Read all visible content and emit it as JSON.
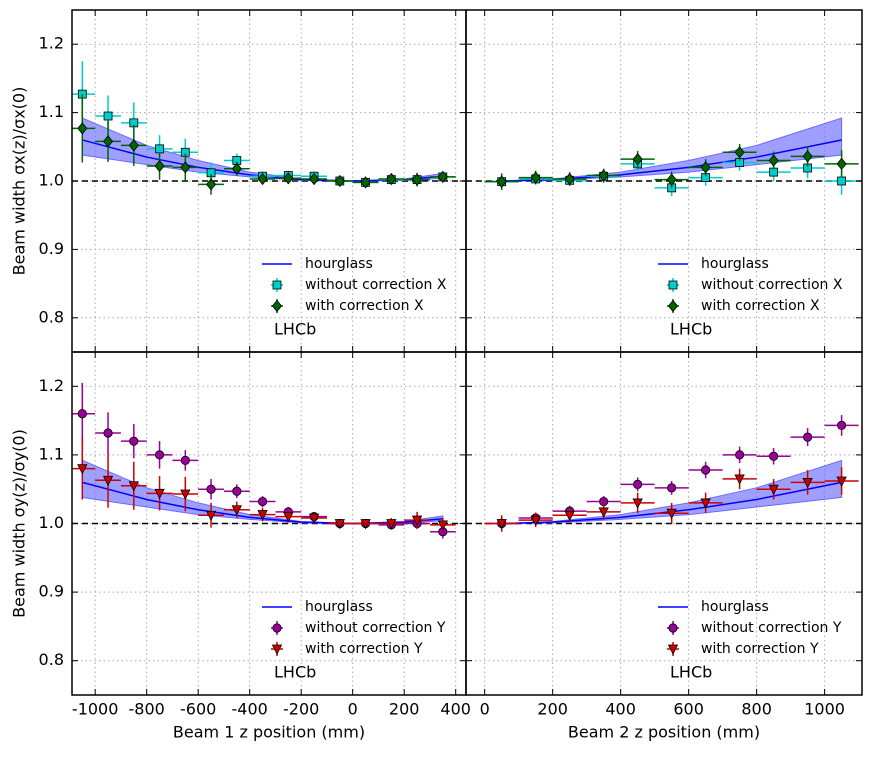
{
  "chart_data": [
    {
      "type": "scatter",
      "ylabel": "Beam width σx(z)/σx(0)",
      "annotation": "LHCb",
      "legend": "lower right",
      "grid": true,
      "hline": 1,
      "xlim": [
        -1090,
        440
      ],
      "ylim": [
        0.75,
        1.25
      ],
      "yticks": [
        0.8,
        0.9,
        {
          "value": 1,
          "label": "1.0"
        },
        1.1,
        1.2
      ],
      "series": [
        {
          "name": "hourglass",
          "color": "#0000ff",
          "band_color": "#6b6bff",
          "x": [
            -1050,
            -800,
            -600,
            -400,
            -200,
            0,
            200,
            350
          ],
          "values": [
            1.06,
            1.035,
            1.02,
            1.009,
            1.002,
            1.0,
            1.002,
            1.007
          ],
          "band_low": [
            1.038,
            1.024,
            1.013,
            1.006,
            1.001,
            1.0,
            1.001,
            1.004
          ],
          "band_high": [
            1.092,
            1.052,
            1.03,
            1.013,
            1.003,
            1.0,
            1.003,
            1.011
          ]
        },
        {
          "name": "without correction X",
          "color": "#00cccc",
          "marker": "square",
          "xerr": 50,
          "x": [
            -1050,
            -950,
            -850,
            -750,
            -650,
            -550,
            -450,
            -350,
            -250,
            -150,
            -50,
            50,
            150,
            250,
            350
          ],
          "values": [
            1.127,
            1.095,
            1.085,
            1.047,
            1.042,
            1.012,
            1.03,
            1.007,
            1.008,
            1.007,
            1.0,
            0.998,
            1.002,
            1.002,
            1.006
          ],
          "errors": [
            0.048,
            0.03,
            0.03,
            0.02,
            0.02,
            0.015,
            0.01,
            0.007,
            0.007,
            0.007,
            0.006,
            0.006,
            0.007,
            0.007,
            0.007
          ]
        },
        {
          "name": "with correction X",
          "color": "#006400",
          "marker": "diamond",
          "xerr": 50,
          "x": [
            -1050,
            -950,
            -850,
            -750,
            -650,
            -550,
            -450,
            -350,
            -250,
            -150,
            -50,
            50,
            150,
            250,
            350
          ],
          "values": [
            1.077,
            1.058,
            1.052,
            1.022,
            1.02,
            0.995,
            1.018,
            1.003,
            1.004,
            1.003,
            1.0,
            0.998,
            1.003,
            1.002,
            1.006
          ],
          "errors": [
            0.05,
            0.03,
            0.03,
            0.02,
            0.02,
            0.015,
            0.01,
            0.008,
            0.008,
            0.008,
            0.006,
            0.006,
            0.008,
            0.01,
            0.008
          ]
        }
      ]
    },
    {
      "type": "scatter",
      "annotation": "LHCb",
      "legend": "lower right",
      "grid": true,
      "hline": 1,
      "xlim": [
        -55,
        1110
      ],
      "ylim": [
        0.75,
        1.25
      ],
      "series": [
        {
          "name": "hourglass",
          "color": "#0000ff",
          "band_color": "#6b6bff",
          "x": [
            50,
            200,
            400,
            600,
            800,
            1050
          ],
          "values": [
            1.0,
            1.002,
            1.009,
            1.02,
            1.035,
            1.06
          ],
          "band_low": [
            1.0,
            1.001,
            1.006,
            1.013,
            1.024,
            1.038
          ],
          "band_high": [
            1.0,
            1.003,
            1.013,
            1.03,
            1.052,
            1.092
          ]
        },
        {
          "name": "without correction X",
          "color": "#00cccc",
          "marker": "square",
          "xerr": 50,
          "x": [
            50,
            150,
            250,
            350,
            450,
            550,
            650,
            750,
            850,
            950,
            1050
          ],
          "values": [
            0.999,
            1.003,
            1.001,
            1.007,
            1.025,
            0.99,
            1.005,
            1.027,
            1.013,
            1.019,
            1.0
          ],
          "errors": [
            0.01,
            0.008,
            0.008,
            0.01,
            0.01,
            0.012,
            0.012,
            0.012,
            0.013,
            0.015,
            0.02
          ]
        },
        {
          "name": "with correction X",
          "color": "#006400",
          "marker": "diamond",
          "xerr": 50,
          "x": [
            50,
            150,
            250,
            350,
            450,
            550,
            650,
            750,
            850,
            950,
            1050
          ],
          "values": [
            0.999,
            1.005,
            1.003,
            1.008,
            1.032,
            1.002,
            1.02,
            1.042,
            1.03,
            1.036,
            1.025
          ],
          "errors": [
            0.012,
            0.01,
            0.01,
            0.01,
            0.012,
            0.012,
            0.012,
            0.012,
            0.013,
            0.015,
            0.02
          ]
        }
      ]
    },
    {
      "type": "scatter",
      "ylabel": "Beam width σy(z)/σy(0)",
      "xlabel": "Beam 1 z position (mm)",
      "annotation": "LHCb",
      "legend": "lower right",
      "grid": true,
      "hline": 1,
      "xlim": [
        -1090,
        440
      ],
      "ylim": [
        0.75,
        1.25
      ],
      "yticks": [
        0.8,
        0.9,
        {
          "value": 1,
          "label": "1.0"
        },
        1.1,
        1.2
      ],
      "xticks": [
        -1000,
        -800,
        -600,
        -400,
        -200,
        0,
        200,
        400
      ],
      "series": [
        {
          "name": "hourglass",
          "color": "#0000ff",
          "band_color": "#6b6bff",
          "x": [
            -1050,
            -800,
            -600,
            -400,
            -200,
            0,
            200,
            350
          ],
          "values": [
            1.06,
            1.035,
            1.02,
            1.009,
            1.002,
            1.0,
            1.002,
            1.007
          ],
          "band_low": [
            1.038,
            1.024,
            1.013,
            1.006,
            1.001,
            1.0,
            1.001,
            1.004
          ],
          "band_high": [
            1.092,
            1.052,
            1.03,
            1.013,
            1.003,
            1.0,
            1.003,
            1.011
          ]
        },
        {
          "name": "without correction Y",
          "color": "#990099",
          "marker": "circle",
          "xerr": 50,
          "x": [
            -1050,
            -950,
            -850,
            -750,
            -650,
            -550,
            -450,
            -350,
            -250,
            -150,
            -50,
            50,
            150,
            250,
            350
          ],
          "values": [
            1.16,
            1.132,
            1.12,
            1.1,
            1.092,
            1.05,
            1.047,
            1.032,
            1.017,
            1.01,
            1.0,
            1.0,
            0.998,
            1.0,
            0.988
          ],
          "errors": [
            0.045,
            0.03,
            0.025,
            0.02,
            0.015,
            0.015,
            0.01,
            0.008,
            0.007,
            0.006,
            0.006,
            0.006,
            0.007,
            0.008,
            0.01
          ]
        },
        {
          "name": "with correction Y",
          "color": "#cc0000",
          "marker": "triangle",
          "xerr": 50,
          "x": [
            -1050,
            -950,
            -850,
            -750,
            -650,
            -550,
            -450,
            -350,
            -250,
            -150,
            -50,
            50,
            150,
            250,
            350
          ],
          "values": [
            1.08,
            1.063,
            1.055,
            1.044,
            1.043,
            1.012,
            1.02,
            1.013,
            1.01,
            1.008,
            1.0,
            1.0,
            1.0,
            1.005,
            0.998
          ],
          "errors": [
            0.045,
            0.04,
            0.035,
            0.025,
            0.025,
            0.018,
            0.012,
            0.01,
            0.008,
            0.006,
            0.006,
            0.006,
            0.008,
            0.012,
            0.01
          ]
        }
      ]
    },
    {
      "type": "scatter",
      "xlabel": "Beam 2 z position (mm)",
      "annotation": "LHCb",
      "legend": "lower right",
      "grid": true,
      "hline": 1,
      "xlim": [
        -55,
        1110
      ],
      "ylim": [
        0.75,
        1.25
      ],
      "xticks": [
        0,
        200,
        400,
        600,
        800,
        1000
      ],
      "series": [
        {
          "name": "hourglass",
          "color": "#0000ff",
          "band_color": "#6b6bff",
          "x": [
            50,
            200,
            400,
            600,
            800,
            1050
          ],
          "values": [
            1.0,
            1.002,
            1.009,
            1.02,
            1.035,
            1.06
          ],
          "band_low": [
            1.0,
            1.001,
            1.006,
            1.013,
            1.024,
            1.038
          ],
          "band_high": [
            1.0,
            1.003,
            1.013,
            1.03,
            1.052,
            1.092
          ]
        },
        {
          "name": "without correction Y",
          "color": "#990099",
          "marker": "circle",
          "xerr": 50,
          "x": [
            50,
            150,
            250,
            350,
            450,
            550,
            650,
            750,
            850,
            950,
            1050
          ],
          "values": [
            1.0,
            1.008,
            1.018,
            1.032,
            1.057,
            1.052,
            1.078,
            1.1,
            1.098,
            1.126,
            1.143
          ],
          "errors": [
            0.01,
            0.008,
            0.008,
            0.008,
            0.01,
            0.01,
            0.012,
            0.012,
            0.012,
            0.013,
            0.015
          ]
        },
        {
          "name": "with correction Y",
          "color": "#cc0000",
          "marker": "triangle",
          "xerr": 50,
          "x": [
            50,
            150,
            250,
            350,
            450,
            550,
            650,
            750,
            850,
            950,
            1050
          ],
          "values": [
            1.0,
            1.005,
            1.012,
            1.017,
            1.03,
            1.015,
            1.03,
            1.065,
            1.05,
            1.06,
            1.062
          ],
          "errors": [
            0.012,
            0.01,
            0.01,
            0.012,
            0.015,
            0.015,
            0.015,
            0.015,
            0.015,
            0.018,
            0.02
          ]
        }
      ]
    }
  ]
}
